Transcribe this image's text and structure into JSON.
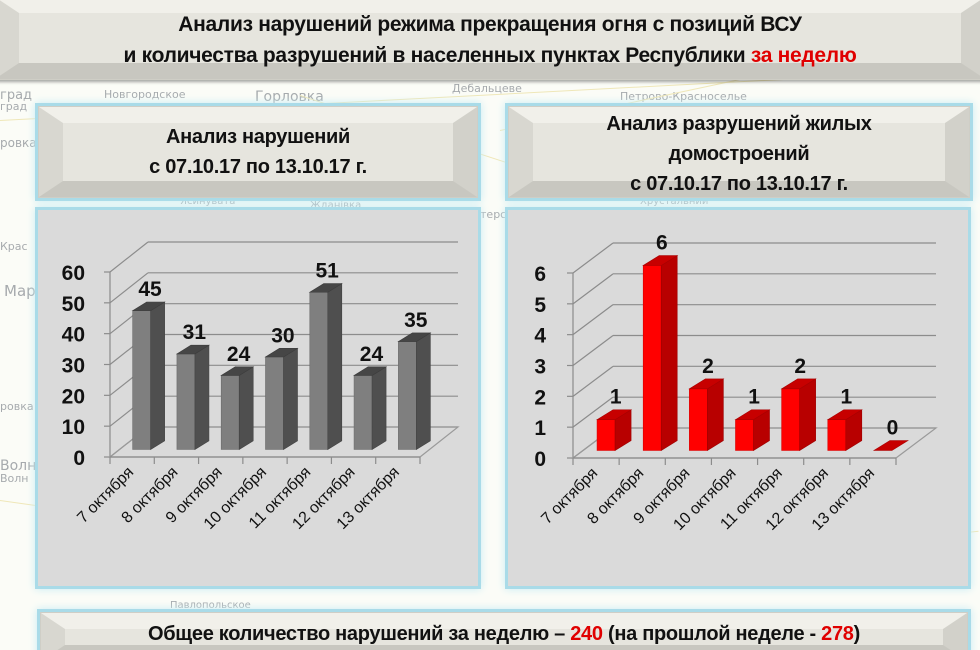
{
  "header": {
    "line1": "Анализ нарушений режима прекращения огня с позиций ВСУ",
    "line2_prefix": "и количества разрушений в населенных пунктах Республики ",
    "line2_highlight": "за неделю"
  },
  "left_panel": {
    "title_line1": "Анализ нарушений",
    "title_line2": "с 07.10.17 по 13.10.17 г."
  },
  "right_panel": {
    "title_line1": "Анализ разрушений жилых",
    "title_line2": "домостроений",
    "title_line3": "с 07.10.17 по 13.10.17 г."
  },
  "footer": {
    "prefix": "Общее количество нарушений за неделю – ",
    "total": "240",
    "middle": " (на прошлой неделе - ",
    "previous": "278",
    "suffix": ")"
  },
  "map_labels": [
    "град",
    "град",
    "Новгородское",
    "Горловка",
    "Дебальцеве",
    "Петрово-Красноселье",
    "ровка",
    "Ясинувата",
    "Жданівка",
    "Шахтерск",
    "Хрустальний",
    "Крас",
    "Мар",
    "ровка",
    "Волн",
    "Волн",
    "Павлопольское",
    "Кр"
  ],
  "colors": {
    "violations_bar": "#7f7f7f",
    "destruction_bar": "#ff0000",
    "highlight": "#e00000",
    "panel_border": "#a9dbe8",
    "chart_bg": "#dadada"
  },
  "chart_data": [
    {
      "type": "bar",
      "title": "Анализ нарушений с 07.10.17 по 13.10.17 г.",
      "categories": [
        "7 октября",
        "8 октября",
        "9 октября",
        "10 октября",
        "11 октября",
        "12 октября",
        "13 октября"
      ],
      "values": [
        45,
        31,
        24,
        30,
        51,
        24,
        35
      ],
      "yticks": [
        0,
        10,
        20,
        30,
        40,
        50,
        60
      ],
      "ylim": [
        0,
        60
      ],
      "xlabel": "",
      "ylabel": "",
      "grid": true,
      "legend": null,
      "style": "3d-column",
      "color": "#7f7f7f"
    },
    {
      "type": "bar",
      "title": "Анализ разрушений жилых домостроений с 07.10.17 по 13.10.17 г.",
      "categories": [
        "7 октября",
        "8 октября",
        "9 октября",
        "10 октября",
        "11 октября",
        "12 октября",
        "13 октября"
      ],
      "values": [
        1,
        6,
        2,
        1,
        2,
        1,
        0
      ],
      "yticks": [
        0,
        1,
        2,
        3,
        4,
        5,
        6
      ],
      "ylim": [
        0,
        6
      ],
      "xlabel": "",
      "ylabel": "",
      "grid": true,
      "legend": null,
      "style": "3d-column",
      "color": "#ff0000"
    }
  ]
}
